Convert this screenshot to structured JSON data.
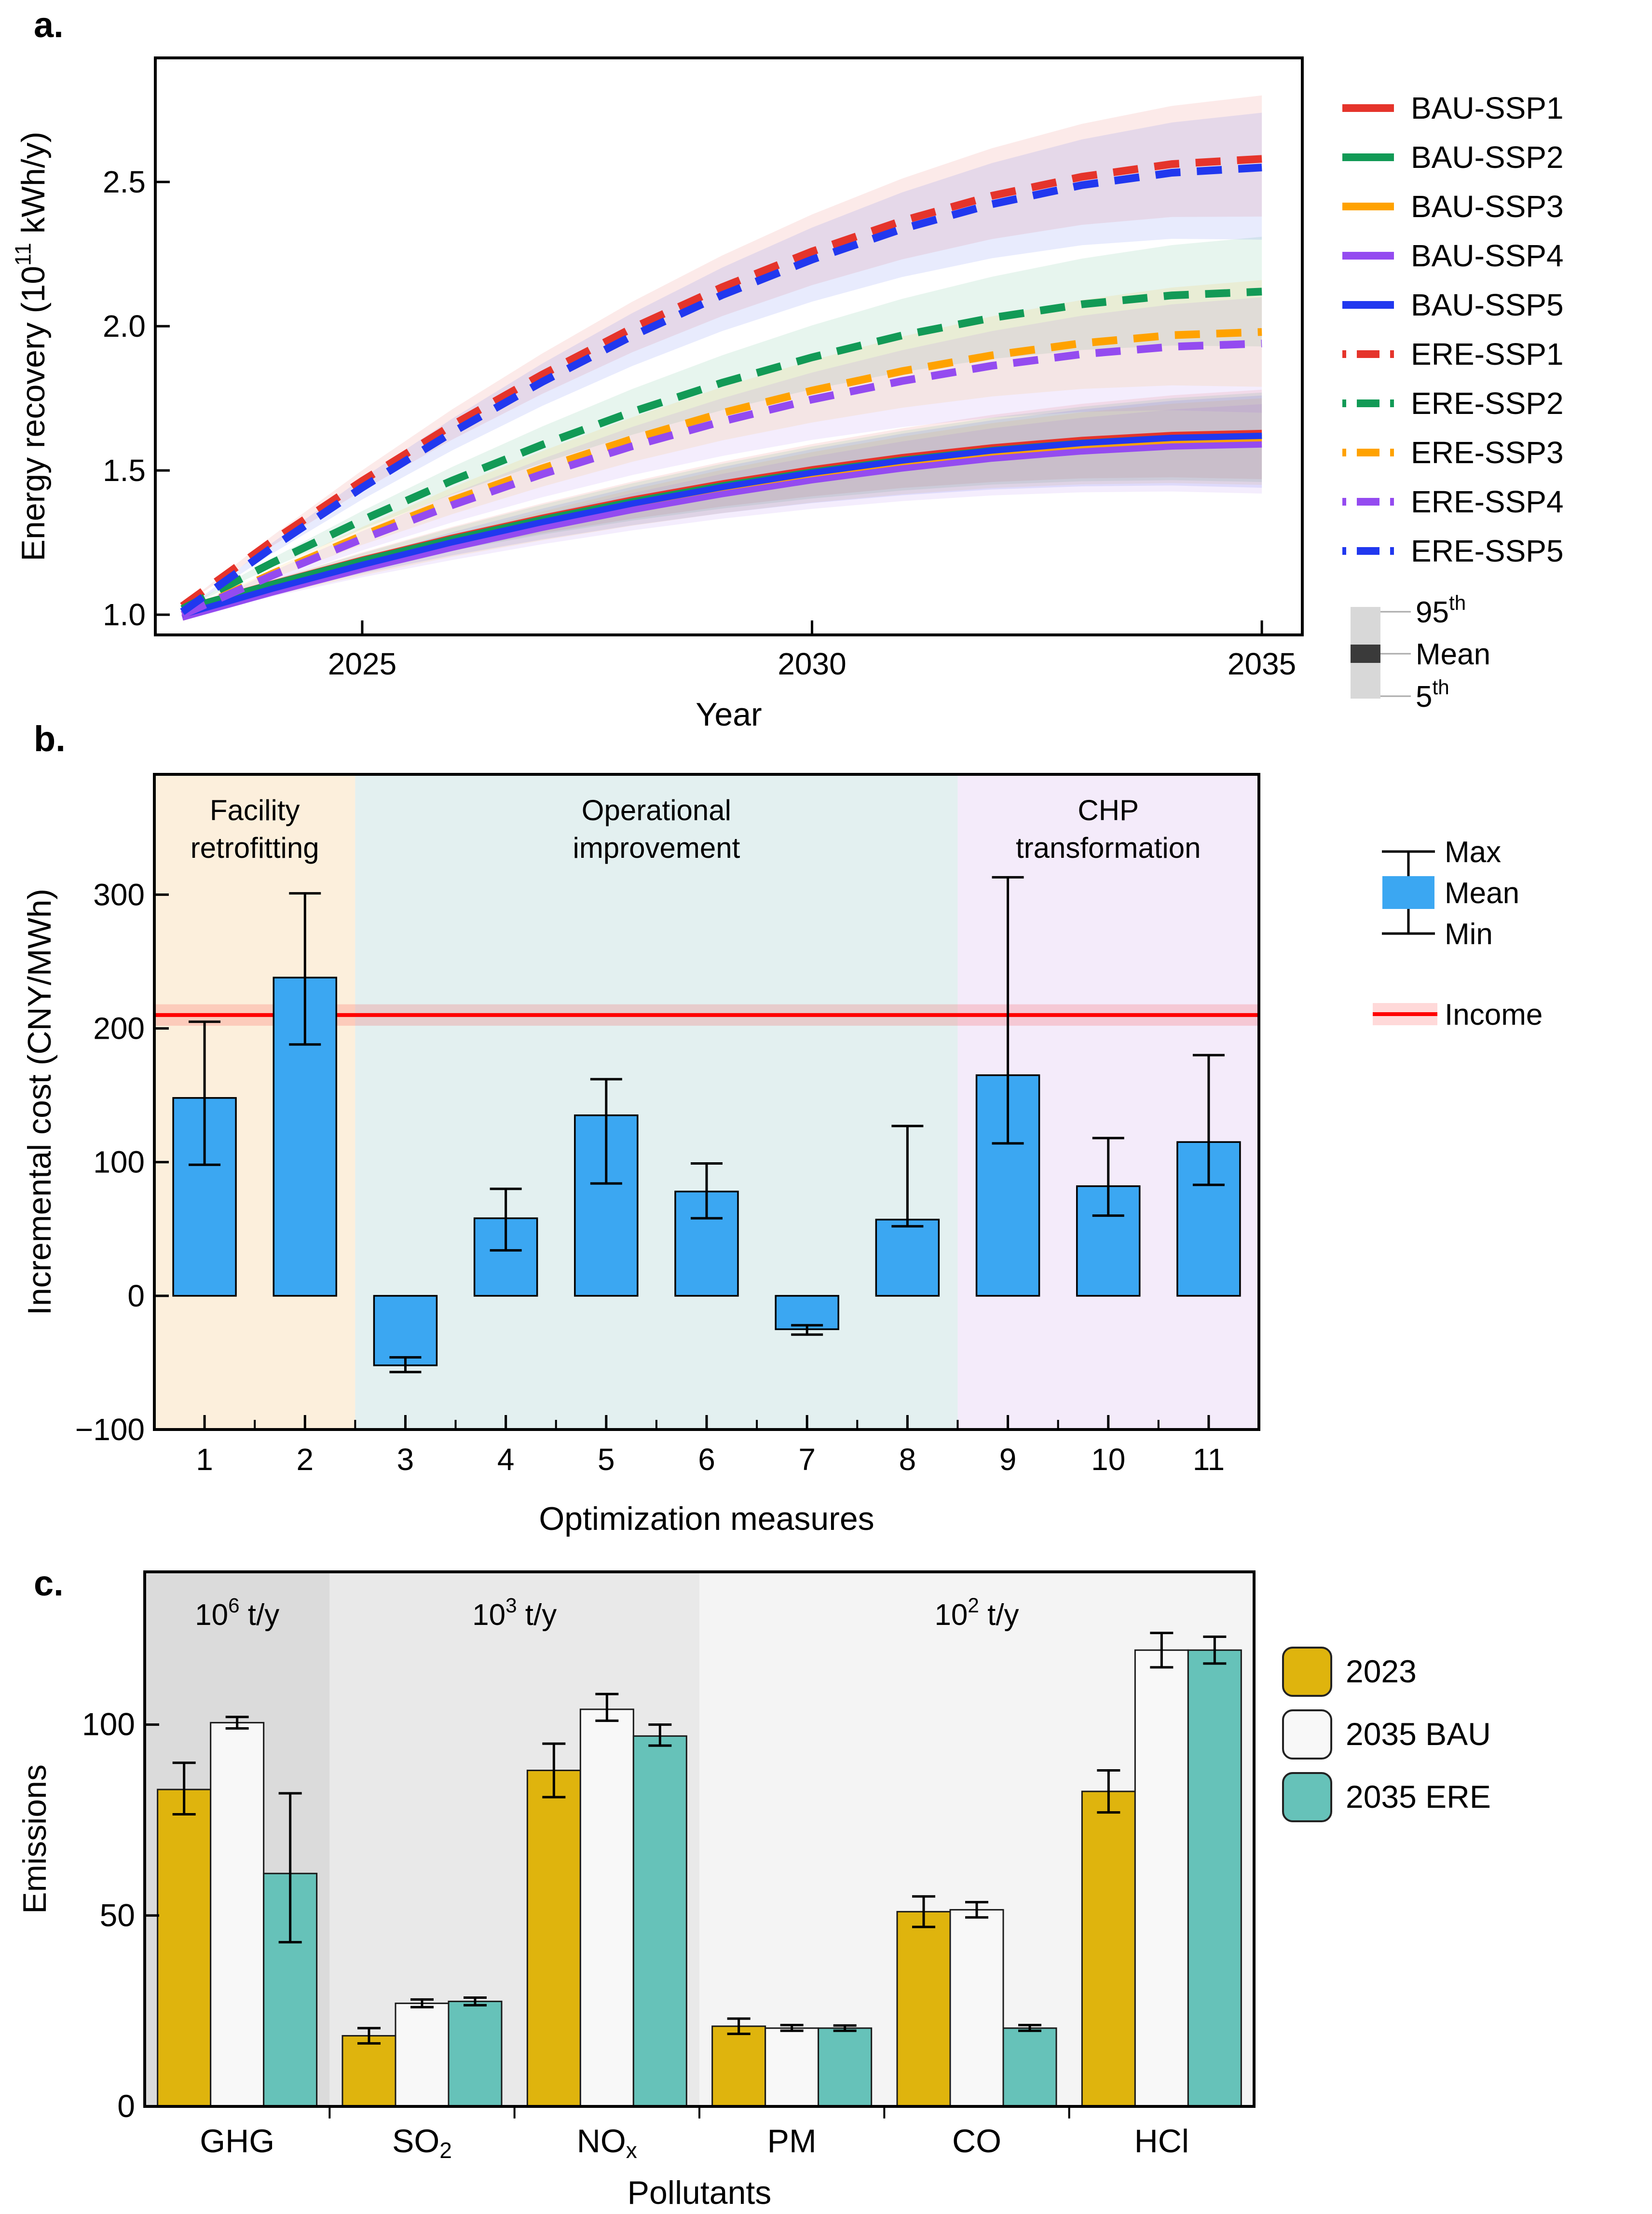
{
  "panels": {
    "a": {
      "letter": "a."
    },
    "b": {
      "letter": "b."
    },
    "c": {
      "letter": "c."
    }
  },
  "chart_data": [
    {
      "id": "energy-recovery-lines",
      "type": "line",
      "xlabel": "Year",
      "ylabel_segments": [
        {
          "t": "Energy recovery (10"
        },
        {
          "t": "11",
          "sup": true
        },
        {
          "t": " kWh/y)"
        }
      ],
      "x_years": [
        2023,
        2024,
        2025,
        2026,
        2027,
        2028,
        2029,
        2030,
        2031,
        2032,
        2033,
        2034,
        2035
      ],
      "xlim": [
        2022.7,
        2035.45
      ],
      "ylim": [
        0.93,
        2.93
      ],
      "xticks": [
        2025,
        2030,
        2035
      ],
      "yticks": [
        "1.0",
        "1.5",
        "2.0",
        "2.5"
      ],
      "ytick_values": [
        1.0,
        1.5,
        2.0,
        2.5
      ],
      "band_alpha": 0.1,
      "series": [
        {
          "name": "BAU-SSP1",
          "color": "#E5342B",
          "dashed": false,
          "band_spread": [
            0.16,
            0.15
          ],
          "values": [
            1.02,
            1.108,
            1.191,
            1.267,
            1.336,
            1.399,
            1.455,
            1.504,
            1.546,
            1.58,
            1.606,
            1.623,
            1.63
          ]
        },
        {
          "name": "BAU-SSP2",
          "color": "#129A56",
          "dashed": false,
          "band_spread": [
            0.16,
            0.15
          ],
          "values": [
            1.02,
            1.107,
            1.188,
            1.263,
            1.331,
            1.393,
            1.448,
            1.496,
            1.537,
            1.571,
            1.596,
            1.613,
            1.62
          ]
        },
        {
          "name": "BAU-SSP3",
          "color": "#FFA200",
          "dashed": false,
          "band_spread": [
            0.16,
            0.14
          ],
          "values": [
            0.99,
            1.08,
            1.163,
            1.241,
            1.311,
            1.375,
            1.432,
            1.482,
            1.524,
            1.559,
            1.585,
            1.603,
            1.61
          ]
        },
        {
          "name": "BAU-SSP4",
          "color": "#944BF0",
          "dashed": false,
          "band_spread": [
            0.17,
            0.14
          ],
          "values": [
            0.99,
            1.077,
            1.158,
            1.232,
            1.301,
            1.363,
            1.418,
            1.466,
            1.507,
            1.541,
            1.566,
            1.583,
            1.59
          ]
        },
        {
          "name": "BAU-SSP5",
          "color": "#2138EF",
          "dashed": false,
          "band_spread": [
            0.18,
            0.14
          ],
          "values": [
            1.0,
            1.09,
            1.173,
            1.251,
            1.321,
            1.385,
            1.442,
            1.492,
            1.534,
            1.569,
            1.595,
            1.613,
            1.62
          ]
        },
        {
          "name": "ERE-SSP1",
          "color": "#E5342B",
          "dashed": true,
          "band_spread": [
            0.2,
            0.22
          ],
          "values": [
            1.03,
            1.255,
            1.464,
            1.657,
            1.832,
            1.993,
            2.135,
            2.259,
            2.365,
            2.452,
            2.518,
            2.562,
            2.58
          ]
        },
        {
          "name": "ERE-SSP2",
          "color": "#129A56",
          "dashed": true,
          "band_spread": [
            0.19,
            0.19
          ],
          "values": [
            1.02,
            1.18,
            1.328,
            1.465,
            1.589,
            1.703,
            1.804,
            1.892,
            1.968,
            2.029,
            2.076,
            2.107,
            2.12
          ]
        },
        {
          "name": "ERE-SSP3",
          "color": "#FFA200",
          "dashed": true,
          "band_spread": [
            0.19,
            0.18
          ],
          "values": [
            1.0,
            1.142,
            1.274,
            1.396,
            1.507,
            1.609,
            1.699,
            1.777,
            1.844,
            1.899,
            1.941,
            1.969,
            1.98
          ]
        },
        {
          "name": "ERE-SSP4",
          "color": "#944BF0",
          "dashed": true,
          "band_spread": [
            0.24,
            0.16
          ],
          "values": [
            1.0,
            1.136,
            1.263,
            1.38,
            1.487,
            1.584,
            1.67,
            1.746,
            1.81,
            1.863,
            1.903,
            1.929,
            1.94
          ]
        },
        {
          "name": "ERE-SSP5",
          "color": "#2138EF",
          "dashed": true,
          "band_spread": [
            0.25,
            0.19
          ],
          "values": [
            1.01,
            1.233,
            1.441,
            1.632,
            1.807,
            1.966,
            2.108,
            2.231,
            2.337,
            2.423,
            2.489,
            2.532,
            2.55
          ]
        }
      ],
      "legend_gauge": {
        "high_segments": [
          {
            "t": "95"
          },
          {
            "t": "th",
            "sup": true
          }
        ],
        "mid_segments": [
          {
            "t": "Mean"
          }
        ],
        "low_segments": [
          {
            "t": "5"
          },
          {
            "t": "th",
            "sup": true
          }
        ],
        "bar_color": "#D8D8D8",
        "mean_color": "#3A3A3A"
      }
    },
    {
      "id": "incremental-cost-bars",
      "type": "bar",
      "xlabel": "Optimization measures",
      "ylabel": "Incremental cost (CNY/MWh)",
      "categories": [
        "1",
        "2",
        "3",
        "4",
        "5",
        "6",
        "7",
        "8",
        "9",
        "10",
        "11"
      ],
      "mean": [
        148,
        238,
        -52,
        58,
        135,
        78,
        -25,
        57,
        165,
        82,
        115
      ],
      "min": [
        98,
        188,
        -57,
        34,
        84,
        58,
        -29,
        52,
        114,
        60,
        83
      ],
      "max": [
        205,
        301,
        -46,
        80,
        162,
        99,
        -22,
        127,
        313,
        118,
        180
      ],
      "bar_color": "#3BA7F2",
      "ylim": [
        -100,
        390
      ],
      "yticks": [
        -100,
        0,
        100,
        200,
        300
      ],
      "regions": [
        {
          "label_lines": [
            "Facility",
            "retrofitting"
          ],
          "from": 0,
          "to": 2,
          "color": "#FCEFDC"
        },
        {
          "label_lines": [
            "Operational",
            "improvement"
          ],
          "from": 2,
          "to": 8,
          "color": "#E3F0F0"
        },
        {
          "label_lines": [
            "CHP",
            "transformation"
          ],
          "from": 8,
          "to": 11,
          "color": "#F4EBFA"
        }
      ],
      "income": {
        "label": "Income",
        "value": 210,
        "band": [
          202,
          218
        ],
        "color": "#FF0000"
      },
      "legend": {
        "max_label": "Max",
        "mean_label": "Mean",
        "min_label": "Min"
      }
    },
    {
      "id": "emissions-grouped-bars",
      "type": "grouped_bar",
      "xlabel": "Pollutants",
      "ylabel": "Emissions",
      "categories_segments": [
        [
          {
            "t": "GHG"
          }
        ],
        [
          {
            "t": "SO"
          },
          {
            "t": "2",
            "sub": true
          }
        ],
        [
          {
            "t": "NO"
          },
          {
            "t": "x",
            "sub": true
          }
        ],
        [
          {
            "t": "PM"
          }
        ],
        [
          {
            "t": "CO"
          }
        ],
        [
          {
            "t": "HCl"
          }
        ]
      ],
      "unit_regions": [
        {
          "segments": [
            {
              "t": "10"
            },
            {
              "t": "6",
              "sup": true
            },
            {
              "t": " t/y"
            }
          ],
          "from": 0,
          "to": 1,
          "color": "#DBDBDB"
        },
        {
          "segments": [
            {
              "t": "10"
            },
            {
              "t": "3",
              "sup": true
            },
            {
              "t": " t/y"
            }
          ],
          "from": 1,
          "to": 3,
          "color": "#E9E9E9"
        },
        {
          "segments": [
            {
              "t": "10"
            },
            {
              "t": "2",
              "sup": true
            },
            {
              "t": " t/y"
            }
          ],
          "from": 3,
          "to": 6,
          "color": "#F4F4F4"
        }
      ],
      "ylim": [
        0,
        140
      ],
      "yticks": [
        0,
        50,
        100
      ],
      "series": [
        {
          "name": "2023",
          "color": "#DFB40D",
          "values": [
            83,
            18.5,
            88,
            21,
            51,
            82.5
          ],
          "err_lo": [
            76.5,
            16.5,
            81,
            19,
            47,
            77
          ],
          "err_hi": [
            90,
            20.5,
            95,
            23,
            55,
            88
          ]
        },
        {
          "name": "2035 BAU",
          "color": "#F8F8F8",
          "values": [
            100.5,
            27,
            104,
            20.5,
            51.5,
            119.5
          ],
          "err_lo": [
            99,
            26,
            101,
            19.8,
            49.5,
            115
          ],
          "err_hi": [
            102,
            28,
            108,
            21.3,
            53.5,
            124
          ]
        },
        {
          "name": "2035 ERE",
          "color": "#66C2B9",
          "values": [
            61,
            27.5,
            97,
            20.5,
            20.5,
            119.5
          ],
          "err_lo": [
            43,
            26.5,
            94.5,
            19.8,
            19.8,
            116
          ],
          "err_hi": [
            82,
            28.5,
            100,
            21.2,
            21.3,
            123
          ]
        }
      ]
    }
  ]
}
